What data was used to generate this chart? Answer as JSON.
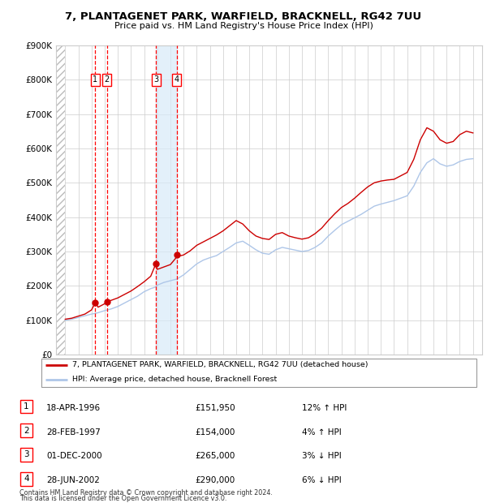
{
  "title": "7, PLANTAGENET PARK, WARFIELD, BRACKNELL, RG42 7UU",
  "subtitle": "Price paid vs. HM Land Registry's House Price Index (HPI)",
  "ylim": [
    0,
    900000
  ],
  "yticks": [
    0,
    100000,
    200000,
    300000,
    400000,
    500000,
    600000,
    700000,
    800000,
    900000
  ],
  "ytick_labels": [
    "£0",
    "£100K",
    "£200K",
    "£300K",
    "£400K",
    "£500K",
    "£600K",
    "£700K",
    "£800K",
    "£900K"
  ],
  "xlim_start": 1993.3,
  "xlim_end": 2025.7,
  "hpi_color": "#aec6e8",
  "price_color": "#cc0000",
  "sale_dates": [
    1996.29,
    1997.16,
    2000.92,
    2002.49
  ],
  "sale_prices": [
    151950,
    154000,
    265000,
    290000
  ],
  "sale_labels": [
    "1",
    "2",
    "3",
    "4"
  ],
  "span_color": "#d8eaf8",
  "transactions": [
    {
      "n": "1",
      "date": "18-APR-1996",
      "price": "£151,950",
      "hpi": "12% ↑ HPI"
    },
    {
      "n": "2",
      "date": "28-FEB-1997",
      "price": "£154,000",
      "hpi": "4% ↑ HPI"
    },
    {
      "n": "3",
      "date": "01-DEC-2000",
      "price": "£265,000",
      "hpi": "3% ↓ HPI"
    },
    {
      "n": "4",
      "date": "28-JUN-2002",
      "price": "£290,000",
      "hpi": "6% ↓ HPI"
    }
  ],
  "legend_line1": "7, PLANTAGENET PARK, WARFIELD, BRACKNELL, RG42 7UU (detached house)",
  "legend_line2": "HPI: Average price, detached house, Bracknell Forest",
  "footer1": "Contains HM Land Registry data © Crown copyright and database right 2024.",
  "footer2": "This data is licensed under the Open Government Licence v3.0.",
  "hpi_data_years": [
    1994,
    1994.5,
    1995,
    1995.5,
    1996,
    1996.3,
    1996.5,
    1997,
    1997.2,
    1997.5,
    1998,
    1998.5,
    1999,
    1999.5,
    2000,
    2000.5,
    2000.9,
    2001,
    2001.5,
    2002,
    2002.5,
    2002.5,
    2003,
    2003.5,
    2004,
    2004.5,
    2005,
    2005.5,
    2006,
    2006.5,
    2007,
    2007.5,
    2008,
    2008.5,
    2009,
    2009.5,
    2010,
    2010.5,
    2011,
    2011.5,
    2012,
    2012.5,
    2013,
    2013.5,
    2014,
    2014.5,
    2015,
    2015.5,
    2016,
    2016.5,
    2017,
    2017.5,
    2018,
    2018.5,
    2019,
    2019.5,
    2020,
    2020.5,
    2021,
    2021.5,
    2022,
    2022.5,
    2023,
    2023.5,
    2024,
    2024.5,
    2025
  ],
  "hpi_data_values": [
    100000,
    103000,
    108000,
    113000,
    118000,
    120000,
    122000,
    128000,
    130000,
    133000,
    140000,
    150000,
    160000,
    170000,
    183000,
    192000,
    197000,
    202000,
    210000,
    215000,
    220000,
    220000,
    232000,
    248000,
    264000,
    275000,
    282000,
    288000,
    300000,
    312000,
    325000,
    330000,
    318000,
    305000,
    295000,
    292000,
    305000,
    312000,
    308000,
    304000,
    300000,
    303000,
    312000,
    325000,
    345000,
    362000,
    378000,
    388000,
    398000,
    408000,
    420000,
    432000,
    438000,
    443000,
    448000,
    455000,
    462000,
    490000,
    530000,
    558000,
    570000,
    555000,
    548000,
    552000,
    562000,
    568000,
    570000
  ],
  "price_data_years": [
    1994,
    1994.5,
    1995,
    1995.5,
    1996,
    1996.3,
    1996.5,
    1997,
    1997.2,
    1997.5,
    1998,
    1998.5,
    1999,
    1999.5,
    2000,
    2000.5,
    2000.9,
    2001,
    2001.5,
    2002,
    2002.5,
    2002.5,
    2003,
    2003.5,
    2004,
    2004.5,
    2005,
    2005.5,
    2006,
    2006.5,
    2007,
    2007.5,
    2008,
    2008.5,
    2009,
    2009.5,
    2010,
    2010.5,
    2011,
    2011.5,
    2012,
    2012.5,
    2013,
    2013.5,
    2014,
    2014.5,
    2015,
    2015.5,
    2016,
    2016.5,
    2017,
    2017.5,
    2018,
    2018.5,
    2019,
    2019.5,
    2020,
    2020.5,
    2021,
    2021.5,
    2022,
    2022.5,
    2023,
    2023.5,
    2024,
    2024.5,
    2025
  ],
  "price_data_values": [
    103000,
    106000,
    112000,
    118000,
    130000,
    152000,
    138000,
    148000,
    154000,
    158000,
    165000,
    175000,
    185000,
    198000,
    212000,
    228000,
    265000,
    248000,
    255000,
    262000,
    285000,
    285000,
    290000,
    302000,
    318000,
    328000,
    338000,
    348000,
    360000,
    375000,
    390000,
    380000,
    360000,
    345000,
    338000,
    335000,
    350000,
    355000,
    345000,
    340000,
    336000,
    340000,
    352000,
    368000,
    390000,
    410000,
    428000,
    440000,
    455000,
    472000,
    488000,
    500000,
    505000,
    508000,
    510000,
    520000,
    530000,
    568000,
    625000,
    660000,
    650000,
    625000,
    615000,
    620000,
    640000,
    650000,
    645000
  ]
}
